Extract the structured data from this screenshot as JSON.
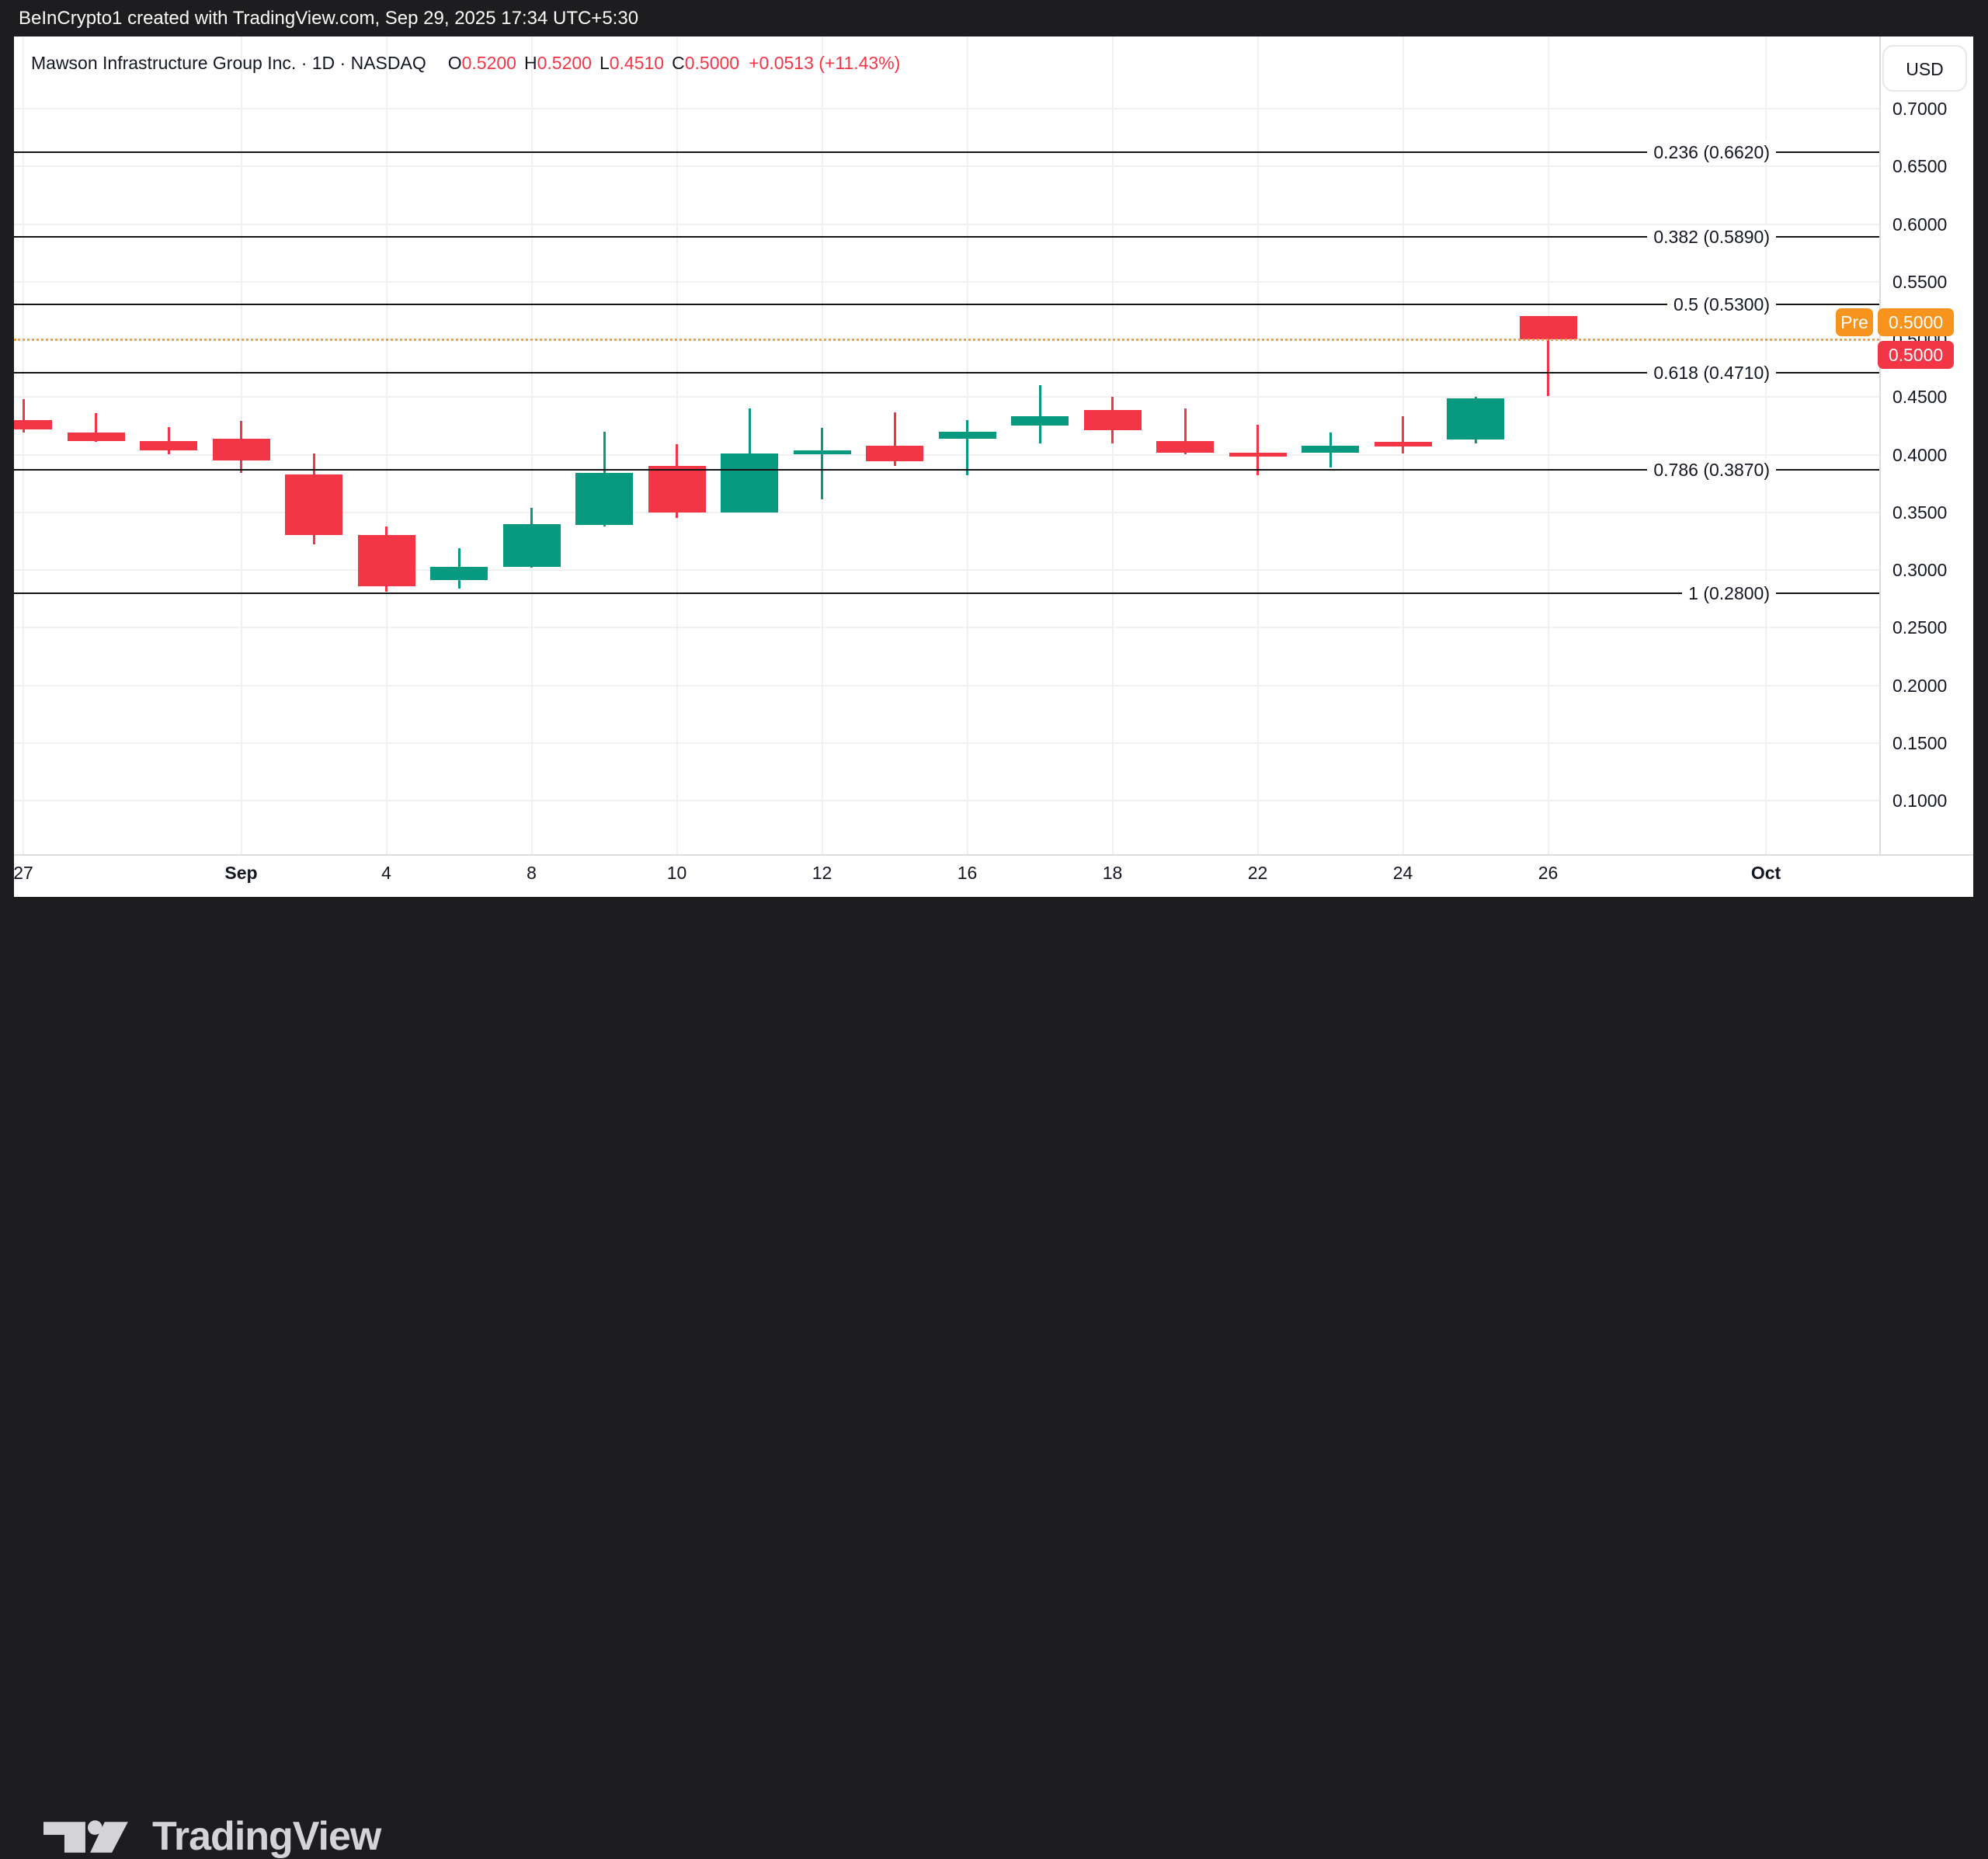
{
  "topbar": {
    "attribution": "BeInCrypto1 created with TradingView.com, Sep 29, 2025 17:34 UTC+5:30"
  },
  "legend": {
    "symbol": "Mawson Infrastructure Group Inc. · 1D · NASDAQ",
    "ohlc": [
      {
        "label": "O",
        "value": "0.5200"
      },
      {
        "label": "H",
        "value": "0.5200"
      },
      {
        "label": "L",
        "value": "0.4510"
      },
      {
        "label": "C",
        "value": "0.5000"
      }
    ],
    "change": "+0.0513 (+11.43%)"
  },
  "price_axis": {
    "currency": "USD",
    "ticks": [
      "0.7000",
      "0.6500",
      "0.6000",
      "0.5500",
      "0.5000",
      "0.4500",
      "0.4000",
      "0.3500",
      "0.3000",
      "0.2500",
      "0.2000",
      "0.1500",
      "0.1000"
    ],
    "tick_values": [
      0.7,
      0.65,
      0.6,
      0.55,
      0.5,
      0.45,
      0.4,
      0.35,
      0.3,
      0.25,
      0.2,
      0.15,
      0.1
    ]
  },
  "badges": {
    "pre_label": "Pre",
    "pre_value": "0.5000",
    "last_value": "0.5000"
  },
  "footer": {
    "brand": "TradingView"
  },
  "colors": {
    "up": "#089981",
    "down": "#F23645",
    "premarket_badge": "#F7941E",
    "premarket_line": "#F2A33C",
    "last_badge": "#F23645",
    "fib_line": "#141414",
    "grid": "#F0F1F3",
    "panel": "#FFFFFF",
    "bg_dark": "#1D1D1F",
    "text": "#131722"
  },
  "chart_data": {
    "type": "candlestick",
    "symbol": "Mawson Infrastructure Group Inc.",
    "interval": "1D",
    "exchange": "NASDAQ",
    "ylim": [
      0.1,
      0.7
    ],
    "grid": true,
    "legend_position": "top-left",
    "candles": [
      {
        "date": "Aug 27",
        "o": 0.43,
        "h": 0.448,
        "l": 0.419,
        "c": 0.422
      },
      {
        "date": "Aug 28",
        "o": 0.419,
        "h": 0.436,
        "l": 0.411,
        "c": 0.412
      },
      {
        "date": "Aug 29",
        "o": 0.412,
        "h": 0.424,
        "l": 0.4,
        "c": 0.404
      },
      {
        "date": "Sep 2",
        "o": 0.414,
        "h": 0.429,
        "l": 0.384,
        "c": 0.395
      },
      {
        "date": "Sep 3",
        "o": 0.383,
        "h": 0.401,
        "l": 0.322,
        "c": 0.33
      },
      {
        "date": "Sep 4",
        "o": 0.33,
        "h": 0.338,
        "l": 0.281,
        "c": 0.286
      },
      {
        "date": "Sep 5",
        "o": 0.291,
        "h": 0.319,
        "l": 0.284,
        "c": 0.303
      },
      {
        "date": "Sep 8",
        "o": 0.303,
        "h": 0.354,
        "l": 0.302,
        "c": 0.34
      },
      {
        "date": "Sep 9",
        "o": 0.339,
        "h": 0.42,
        "l": 0.338,
        "c": 0.384
      },
      {
        "date": "Sep 10",
        "o": 0.39,
        "h": 0.409,
        "l": 0.345,
        "c": 0.35
      },
      {
        "date": "Sep 11",
        "o": 0.35,
        "h": 0.44,
        "l": 0.35,
        "c": 0.401
      },
      {
        "date": "Sep 12",
        "o": 0.4,
        "h": 0.423,
        "l": 0.361,
        "c": 0.404
      },
      {
        "date": "Sep 15",
        "o": 0.408,
        "h": 0.437,
        "l": 0.39,
        "c": 0.394
      },
      {
        "date": "Sep 16",
        "o": 0.414,
        "h": 0.43,
        "l": 0.382,
        "c": 0.42
      },
      {
        "date": "Sep 17",
        "o": 0.425,
        "h": 0.46,
        "l": 0.41,
        "c": 0.433
      },
      {
        "date": "Sep 18",
        "o": 0.439,
        "h": 0.45,
        "l": 0.41,
        "c": 0.421
      },
      {
        "date": "Sep 19",
        "o": 0.412,
        "h": 0.44,
        "l": 0.4,
        "c": 0.402
      },
      {
        "date": "Sep 22",
        "o": 0.402,
        "h": 0.426,
        "l": 0.382,
        "c": 0.398
      },
      {
        "date": "Sep 23",
        "o": 0.402,
        "h": 0.419,
        "l": 0.389,
        "c": 0.408
      },
      {
        "date": "Sep 24",
        "o": 0.411,
        "h": 0.433,
        "l": 0.401,
        "c": 0.407
      },
      {
        "date": "Sep 25",
        "o": 0.413,
        "h": 0.45,
        "l": 0.41,
        "c": 0.449
      },
      {
        "date": "Sep 26",
        "o": 0.52,
        "h": 0.52,
        "l": 0.451,
        "c": 0.5
      }
    ],
    "x_axis_labels": [
      {
        "text": "27",
        "index": 0,
        "bold": false
      },
      {
        "text": "Sep",
        "index": 3,
        "bold": true
      },
      {
        "text": "4",
        "index": 5,
        "bold": false
      },
      {
        "text": "8",
        "index": 7,
        "bold": false
      },
      {
        "text": "10",
        "index": 9,
        "bold": false
      },
      {
        "text": "12",
        "index": 11,
        "bold": false
      },
      {
        "text": "16",
        "index": 13,
        "bold": false
      },
      {
        "text": "18",
        "index": 15,
        "bold": false
      },
      {
        "text": "22",
        "index": 17,
        "bold": false
      },
      {
        "text": "24",
        "index": 19,
        "bold": false
      },
      {
        "text": "26",
        "index": 21,
        "bold": false
      },
      {
        "text": "Oct",
        "index": 24,
        "bold": true
      }
    ],
    "fib_levels": [
      {
        "label": "0.236 (0.6620)",
        "price": 0.662
      },
      {
        "label": "0.382 (0.5890)",
        "price": 0.589
      },
      {
        "label": "0.5 (0.5300)",
        "price": 0.53
      },
      {
        "label": "0.618 (0.4710)",
        "price": 0.471
      },
      {
        "label": "0.786 (0.3870)",
        "price": 0.387
      },
      {
        "label": "1 (0.2800)",
        "price": 0.28
      }
    ],
    "premarket_line": {
      "price": 0.5,
      "style": "dotted"
    }
  }
}
